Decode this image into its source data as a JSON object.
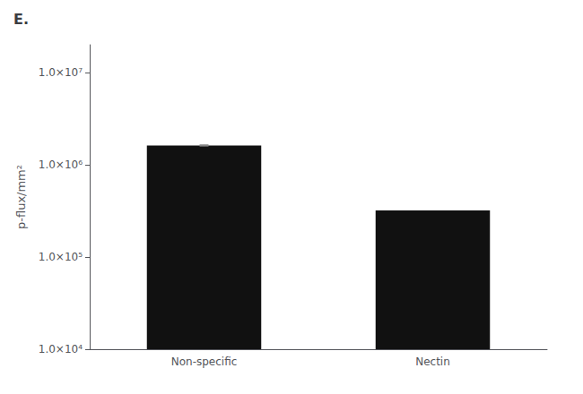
{
  "chart_data": {
    "type": "bar",
    "title": "E.",
    "categories": [
      "Non-specific",
      "Nectin"
    ],
    "values": [
      1620000,
      320000
    ],
    "errors": [
      25000,
      null
    ],
    "color": "#111111",
    "ylabel": "p-flux/mm²",
    "log": "y",
    "ylim": [
      10000,
      20000000
    ],
    "yticks": [
      {
        "value": 10000,
        "label": "1.0×10⁴"
      },
      {
        "value": 100000,
        "label": "1.0×10⁵"
      },
      {
        "value": 1000000,
        "label": "1.0×10⁶"
      },
      {
        "value": 10000000,
        "label": "1.0×10⁷"
      }
    ],
    "grid": false
  }
}
